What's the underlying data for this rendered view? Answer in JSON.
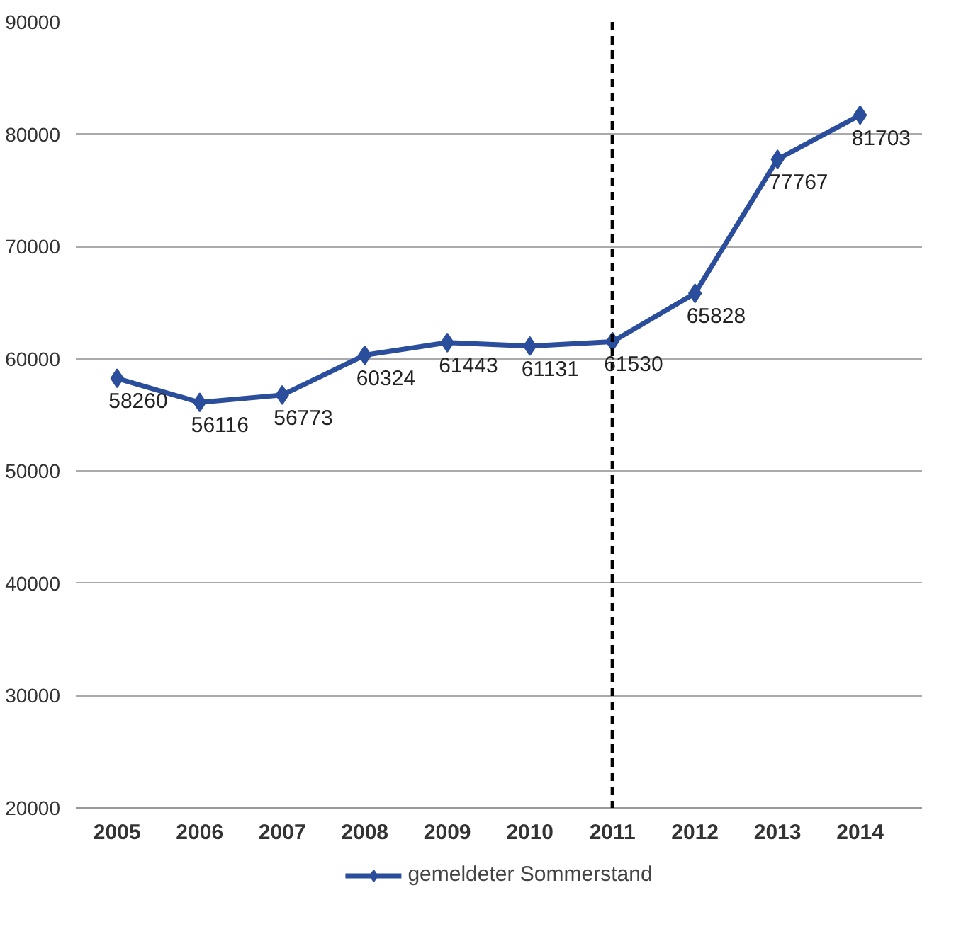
{
  "chart_data": {
    "type": "line",
    "categories": [
      "2005",
      "2006",
      "2007",
      "2008",
      "2009",
      "2010",
      "2011",
      "2012",
      "2013",
      "2014"
    ],
    "series": [
      {
        "name": "gemeldeter Sommerstand",
        "color": "#2a4d9c",
        "values": [
          58260,
          56116,
          56773,
          60324,
          61443,
          61131,
          61530,
          65828,
          77767,
          81703
        ]
      }
    ],
    "ylim": [
      20000,
      90000
    ],
    "yticks": [
      20000,
      30000,
      40000,
      50000,
      60000,
      70000,
      80000,
      90000
    ],
    "grid": "y",
    "legend": "bottom",
    "marker": "diamond",
    "line_style": "solid",
    "data_labels": true,
    "ref_lines": [
      {
        "axis": "x",
        "value": "2011",
        "color": "#000000",
        "line_style": "dashed"
      }
    ]
  }
}
